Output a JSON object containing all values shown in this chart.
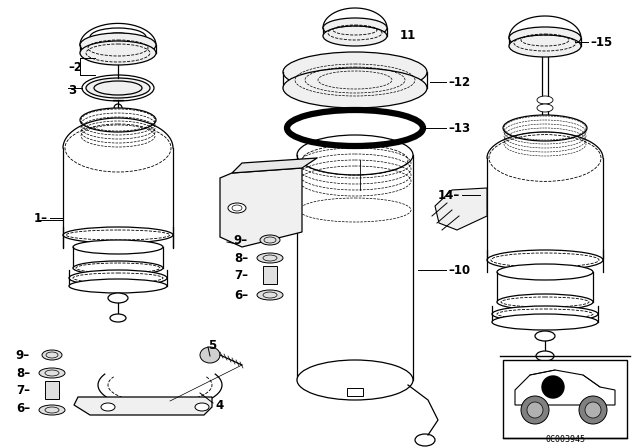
{
  "bg_color": "#ffffff",
  "line_color": "#000000",
  "fig_width": 6.4,
  "fig_height": 4.48,
  "dpi": 100,
  "watermark": "0C003945"
}
